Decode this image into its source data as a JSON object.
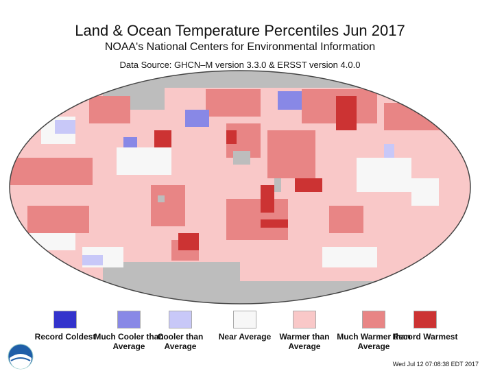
{
  "header": {
    "title": "Land & Ocean Temperature Percentiles Jun 2017",
    "subtitle": "NOAA's National Centers for Environmental Information",
    "source": "Data Source: GHCN–M version 3.3.0 & ERSST version 4.0.0"
  },
  "legend": [
    {
      "label": "Record Coldest",
      "color": "#3333cc"
    },
    {
      "label": "Much Cooler than Average",
      "color": "#8888e6"
    },
    {
      "label": "Cooler than Average",
      "color": "#c8c8f8"
    },
    {
      "label": "Near Average",
      "color": "#f7f7f7"
    },
    {
      "label": "Warmer than Average",
      "color": "#f9c8c8"
    },
    {
      "label": "Much Warmer than Average",
      "color": "#e88585"
    },
    {
      "label": "Record Warmest",
      "color": "#cc3333"
    }
  ],
  "no_data_color": "#bdbdbd",
  "logo": "noaa-logo",
  "timestamp": "Wed Jul 12 07:08:38 EDT 2017"
}
